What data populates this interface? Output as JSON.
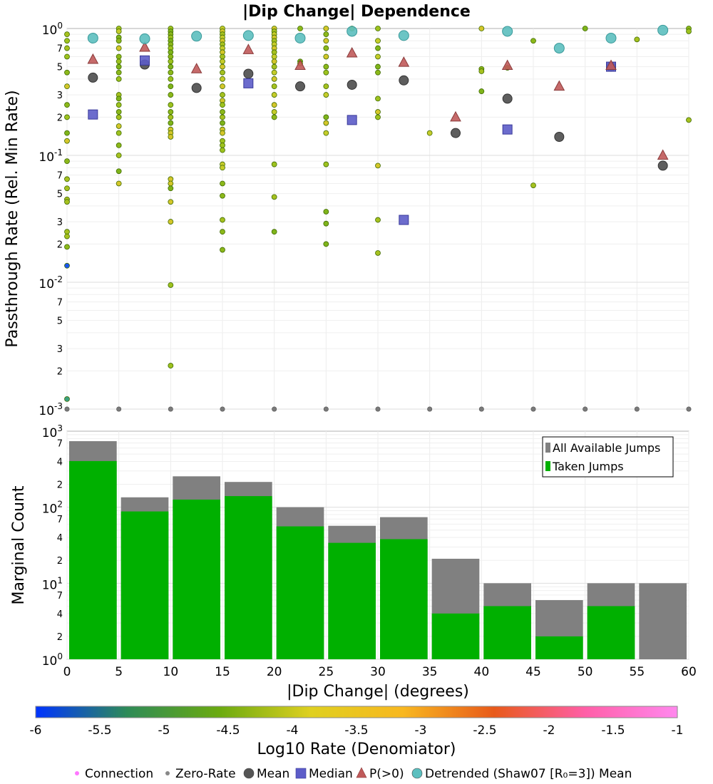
{
  "chart_data": [
    {
      "type": "scatter",
      "title": "|Dip Change| Dependence",
      "ylabel": "Passthrough Rate (Rel. Min Rate)",
      "xlim": [
        0,
        60
      ],
      "ylim": [
        0.001,
        1
      ],
      "yscale": "log",
      "grid": true,
      "y_ticks": [
        "10^0",
        "10^-1",
        "10^-2",
        "10^-3"
      ],
      "y_minor_ticks": [
        "7",
        "5",
        "3",
        "2"
      ],
      "points": [
        [
          0,
          0.9
        ],
        [
          0,
          0.8
        ],
        [
          0,
          0.7
        ],
        [
          0,
          0.6
        ],
        [
          0,
          0.45
        ],
        [
          0,
          0.35
        ],
        [
          0,
          0.25
        ],
        [
          0,
          0.2
        ],
        [
          0,
          0.15
        ],
        [
          0,
          0.13
        ],
        [
          0,
          0.09
        ],
        [
          0,
          0.065
        ],
        [
          0,
          0.055
        ],
        [
          0,
          0.045
        ],
        [
          0,
          0.043
        ],
        [
          0,
          0.025
        ],
        [
          0,
          0.023
        ],
        [
          0,
          0.019
        ],
        [
          0,
          0.0135
        ],
        [
          0,
          0.0012
        ],
        [
          5,
          1.0
        ],
        [
          5,
          0.95
        ],
        [
          5,
          0.85
        ],
        [
          5,
          0.8
        ],
        [
          5,
          0.7
        ],
        [
          5,
          0.6
        ],
        [
          5,
          0.55
        ],
        [
          5,
          0.5
        ],
        [
          5,
          0.45
        ],
        [
          5,
          0.4
        ],
        [
          5,
          0.3
        ],
        [
          5,
          0.28
        ],
        [
          5,
          0.25
        ],
        [
          5,
          0.22
        ],
        [
          5,
          0.2
        ],
        [
          5,
          0.17
        ],
        [
          5,
          0.15
        ],
        [
          5,
          0.12
        ],
        [
          5,
          0.1
        ],
        [
          5,
          0.075
        ],
        [
          5,
          0.06
        ],
        [
          10,
          1.0
        ],
        [
          10,
          0.95
        ],
        [
          10,
          0.9
        ],
        [
          10,
          0.85
        ],
        [
          10,
          0.8
        ],
        [
          10,
          0.75
        ],
        [
          10,
          0.7
        ],
        [
          10,
          0.65
        ],
        [
          10,
          0.6
        ],
        [
          10,
          0.55
        ],
        [
          10,
          0.5
        ],
        [
          10,
          0.45
        ],
        [
          10,
          0.4
        ],
        [
          10,
          0.35
        ],
        [
          10,
          0.3
        ],
        [
          10,
          0.25
        ],
        [
          10,
          0.22
        ],
        [
          10,
          0.2
        ],
        [
          10,
          0.18
        ],
        [
          10,
          0.16
        ],
        [
          10,
          0.15
        ],
        [
          10,
          0.14
        ],
        [
          10,
          0.065
        ],
        [
          10,
          0.06
        ],
        [
          10,
          0.055
        ],
        [
          10,
          0.043
        ],
        [
          10,
          0.03
        ],
        [
          10,
          0.0095
        ],
        [
          10,
          0.0022
        ],
        [
          15,
          1.0
        ],
        [
          15,
          0.95
        ],
        [
          15,
          0.9
        ],
        [
          15,
          0.85
        ],
        [
          15,
          0.8
        ],
        [
          15,
          0.75
        ],
        [
          15,
          0.7
        ],
        [
          15,
          0.65
        ],
        [
          15,
          0.6
        ],
        [
          15,
          0.55
        ],
        [
          15,
          0.5
        ],
        [
          15,
          0.45
        ],
        [
          15,
          0.4
        ],
        [
          15,
          0.35
        ],
        [
          15,
          0.3
        ],
        [
          15,
          0.27
        ],
        [
          15,
          0.25
        ],
        [
          15,
          0.22
        ],
        [
          15,
          0.2
        ],
        [
          15,
          0.18
        ],
        [
          15,
          0.16
        ],
        [
          15,
          0.15
        ],
        [
          15,
          0.13
        ],
        [
          15,
          0.12
        ],
        [
          15,
          0.11
        ],
        [
          15,
          0.085
        ],
        [
          15,
          0.08
        ],
        [
          15,
          0.06
        ],
        [
          15,
          0.048
        ],
        [
          15,
          0.031
        ],
        [
          15,
          0.025
        ],
        [
          15,
          0.018
        ],
        [
          20,
          1.0
        ],
        [
          20,
          0.95
        ],
        [
          20,
          0.9
        ],
        [
          20,
          0.85
        ],
        [
          20,
          0.8
        ],
        [
          20,
          0.75
        ],
        [
          20,
          0.7
        ],
        [
          20,
          0.65
        ],
        [
          20,
          0.6
        ],
        [
          20,
          0.55
        ],
        [
          20,
          0.5
        ],
        [
          20,
          0.45
        ],
        [
          20,
          0.4
        ],
        [
          20,
          0.35
        ],
        [
          20,
          0.3
        ],
        [
          20,
          0.25
        ],
        [
          20,
          0.22
        ],
        [
          20,
          0.2
        ],
        [
          20,
          0.085
        ],
        [
          20,
          0.047
        ],
        [
          20,
          0.025
        ],
        [
          22.5,
          1.0
        ],
        [
          22.5,
          0.55
        ],
        [
          22.5,
          0.53
        ],
        [
          25,
          1.0
        ],
        [
          25,
          0.9
        ],
        [
          25,
          0.8
        ],
        [
          25,
          0.7
        ],
        [
          25,
          0.6
        ],
        [
          25,
          0.5
        ],
        [
          25,
          0.45
        ],
        [
          25,
          0.35
        ],
        [
          25,
          0.3
        ],
        [
          25,
          0.2
        ],
        [
          25,
          0.18
        ],
        [
          25,
          0.15
        ],
        [
          25,
          0.085
        ],
        [
          25,
          0.036
        ],
        [
          25,
          0.029
        ],
        [
          25,
          0.02
        ],
        [
          27.5,
          1.0
        ],
        [
          30,
          1.0
        ],
        [
          30,
          0.8
        ],
        [
          30,
          0.7
        ],
        [
          30,
          0.6
        ],
        [
          30,
          0.5
        ],
        [
          30,
          0.45
        ],
        [
          30,
          0.28
        ],
        [
          30,
          0.22
        ],
        [
          30,
          0.2
        ],
        [
          30,
          0.083
        ],
        [
          30,
          0.031
        ],
        [
          30,
          0.017
        ],
        [
          35,
          0.15
        ],
        [
          40,
          1.0
        ],
        [
          40,
          0.48
        ],
        [
          40,
          0.46
        ],
        [
          40,
          0.32
        ],
        [
          42.5,
          0.49
        ],
        [
          45,
          0.8
        ],
        [
          45,
          0.058
        ],
        [
          50,
          1.0
        ],
        [
          55,
          0.82
        ],
        [
          60,
          1.0
        ],
        [
          60,
          0.95
        ],
        [
          60,
          0.19
        ]
      ],
      "zero_rate_x": [
        0,
        5,
        10,
        15,
        20,
        25,
        30,
        35,
        40,
        45,
        50,
        55,
        60
      ],
      "summary_series": [
        {
          "name": "Mean",
          "x": [
            2.5,
            7.5,
            12.5,
            17.5,
            22.5,
            27.5,
            32.5,
            37.5,
            42.5,
            47.5,
            52.5,
            57.5
          ],
          "y": [
            0.41,
            0.52,
            0.34,
            0.44,
            0.35,
            0.36,
            0.39,
            0.15,
            0.28,
            0.14,
            0.5,
            0.083
          ],
          "color": "#555555"
        },
        {
          "name": "Median",
          "x": [
            2.5,
            7.5,
            17.5,
            27.5,
            32.5,
            42.5,
            52.5
          ],
          "y": [
            0.21,
            0.56,
            0.37,
            0.19,
            0.031,
            0.16,
            0.5
          ],
          "color": "#5c5cc8"
        },
        {
          "name": "P(>0)",
          "x": [
            2.5,
            7.5,
            12.5,
            17.5,
            22.5,
            27.5,
            32.5,
            37.5,
            42.5,
            47.5,
            52.5,
            57.5
          ],
          "y": [
            0.57,
            0.71,
            0.48,
            0.68,
            0.51,
            0.64,
            0.54,
            0.2,
            0.51,
            0.35,
            0.51,
            0.1
          ],
          "color": "#c05a5a"
        },
        {
          "name": "Detrended (Shaw07 [R₀=3]) Mean",
          "x": [
            2.5,
            7.5,
            12.5,
            17.5,
            22.5,
            27.5,
            32.5,
            42.5,
            47.5,
            52.5,
            57.5
          ],
          "y": [
            0.84,
            0.83,
            0.87,
            0.88,
            0.84,
            0.95,
            0.88,
            0.95,
            0.7,
            0.84,
            0.97
          ],
          "color": "#5cbfbf"
        }
      ]
    },
    {
      "type": "bar",
      "xlabel": "|Dip Change| (degrees)",
      "ylabel": "Marginal Count",
      "xlim": [
        0,
        60
      ],
      "ylim": [
        1,
        1000
      ],
      "yscale": "log",
      "x_ticks": [
        "0",
        "5",
        "10",
        "15",
        "20",
        "25",
        "30",
        "35",
        "40",
        "45",
        "50",
        "55",
        "60"
      ],
      "y_ticks": [
        "10^3",
        "10^2",
        "10^1",
        "10^0"
      ],
      "y_minor_ticks": [
        "7",
        "4",
        "2"
      ],
      "bin_width": 5,
      "bins_start": [
        0,
        5,
        10,
        15,
        20,
        25,
        30,
        35,
        40,
        45,
        50,
        55
      ],
      "series": [
        {
          "name": "All Available Jumps",
          "color": "#808080",
          "values": [
            740,
            135,
            255,
            215,
            100,
            57,
            74,
            21,
            10,
            6,
            10,
            10
          ]
        },
        {
          "name": "Taken Jumps",
          "color": "#00b000",
          "values": [
            405,
            88,
            126,
            140,
            56,
            34,
            38,
            4,
            5,
            2,
            5,
            0
          ]
        }
      ],
      "legend_position": "top-right"
    }
  ],
  "colorbar": {
    "label": "Log10 Rate (Denomiator)",
    "ticks": [
      "-6",
      "-5.5",
      "-5",
      "-4.5",
      "-4",
      "-3.5",
      "-3",
      "-2.5",
      "-2",
      "-1.5",
      "-1"
    ],
    "stops": [
      "#0033ff",
      "#2e8b57",
      "#6aaa10",
      "#dfd020",
      "#f8b820",
      "#e85a1a",
      "#ff5fa8",
      "#ff88ee"
    ]
  },
  "key": [
    {
      "label": "Connection",
      "marker": "dot",
      "color": "#ff77ff"
    },
    {
      "label": "Zero-Rate",
      "marker": "dot",
      "color": "#888888"
    },
    {
      "label": "Mean",
      "marker": "circle",
      "color": "#555555"
    },
    {
      "label": "Median",
      "marker": "square",
      "color": "#5c5cc8"
    },
    {
      "label": "P(>0)",
      "marker": "triangle",
      "color": "#c05a5a"
    },
    {
      "label": "Detrended (Shaw07 [R₀=3]) Mean",
      "marker": "circle",
      "color": "#5cbfbf"
    }
  ]
}
